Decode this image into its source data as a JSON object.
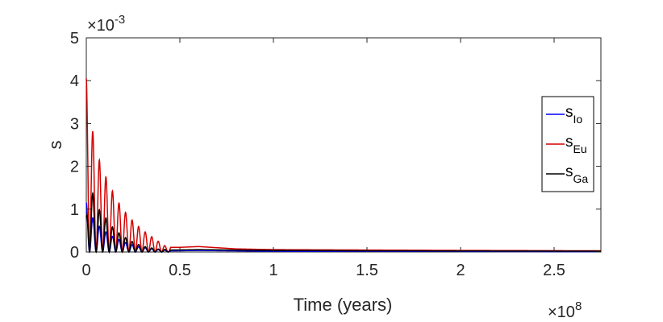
{
  "chart_data": {
    "type": "line",
    "xlabel": "Time (years)",
    "ylabel": "s",
    "x_multiplier": "×10",
    "x_multiplier_exp": "8",
    "y_multiplier": "×10",
    "y_multiplier_exp": "-3",
    "xlim": [
      0,
      2.75
    ],
    "ylim": [
      0,
      5
    ],
    "x_ticks": [
      0,
      0.5,
      1,
      1.5,
      2,
      2.5
    ],
    "x_tick_labels": [
      "0",
      "0.5",
      "1",
      "1.5",
      "2",
      "2.5"
    ],
    "y_ticks": [
      0,
      1,
      2,
      3,
      4,
      5
    ],
    "y_tick_labels": [
      "0",
      "1",
      "2",
      "3",
      "4",
      "5"
    ],
    "grid": false,
    "legend_position": "right",
    "series": [
      {
        "name": "s",
        "subscript": "Io",
        "color": "#0000ff",
        "peaks": [
          [
            0.0,
            1.15
          ],
          [
            0.02,
            0.9
          ],
          [
            0.045,
            0.72
          ],
          [
            0.07,
            0.6
          ],
          [
            0.095,
            0.5
          ],
          [
            0.12,
            0.42
          ],
          [
            0.145,
            0.35
          ],
          [
            0.17,
            0.3
          ],
          [
            0.195,
            0.25
          ],
          [
            0.22,
            0.2
          ],
          [
            0.25,
            0.16
          ],
          [
            0.28,
            0.12
          ],
          [
            0.31,
            0.1
          ],
          [
            0.34,
            0.08
          ],
          [
            0.37,
            0.06
          ],
          [
            0.4,
            0.05
          ],
          [
            0.45,
            0.03
          ],
          [
            0.6,
            0.04
          ],
          [
            0.8,
            0.03
          ],
          [
            1.0,
            0.02
          ],
          [
            2.75,
            0.01
          ]
        ]
      },
      {
        "name": "s",
        "subscript": "Eu",
        "color": "#d40000",
        "peaks": [
          [
            0.0,
            4.05
          ],
          [
            0.045,
            2.45
          ],
          [
            0.09,
            1.9
          ],
          [
            0.125,
            1.55
          ],
          [
            0.16,
            1.25
          ],
          [
            0.195,
            1.0
          ],
          [
            0.23,
            0.82
          ],
          [
            0.265,
            0.65
          ],
          [
            0.3,
            0.52
          ],
          [
            0.335,
            0.4
          ],
          [
            0.37,
            0.3
          ],
          [
            0.4,
            0.2
          ],
          [
            0.43,
            0.12
          ],
          [
            0.5,
            0.12
          ],
          [
            0.6,
            0.14
          ],
          [
            0.8,
            0.08
          ],
          [
            1.0,
            0.06
          ],
          [
            1.5,
            0.05
          ],
          [
            2.0,
            0.04
          ],
          [
            2.75,
            0.03
          ]
        ]
      },
      {
        "name": "s",
        "subscript": "Ga",
        "color": "#000000",
        "peaks": [
          [
            0.0,
            0.8
          ],
          [
            0.02,
            1.6
          ],
          [
            0.055,
            1.05
          ],
          [
            0.09,
            0.9
          ],
          [
            0.125,
            0.65
          ],
          [
            0.16,
            0.5
          ],
          [
            0.195,
            0.38
          ],
          [
            0.23,
            0.28
          ],
          [
            0.265,
            0.2
          ],
          [
            0.3,
            0.14
          ],
          [
            0.34,
            0.1
          ],
          [
            0.38,
            0.07
          ],
          [
            0.45,
            0.05
          ],
          [
            0.6,
            0.06
          ],
          [
            0.8,
            0.05
          ],
          [
            1.0,
            0.04
          ],
          [
            1.5,
            0.03
          ],
          [
            2.75,
            0.02
          ]
        ]
      }
    ]
  }
}
